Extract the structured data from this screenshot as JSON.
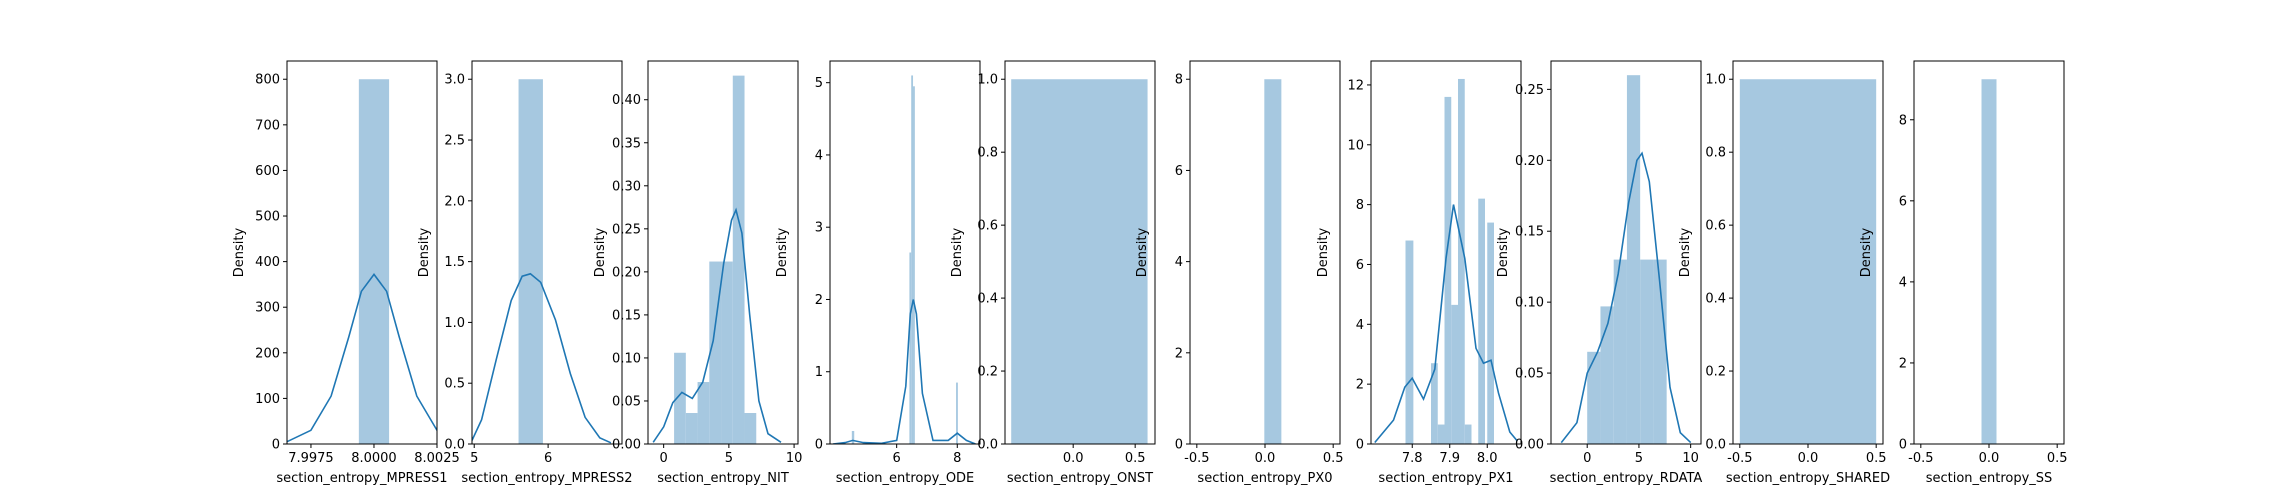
{
  "colors": {
    "hist": "#a6c8e0",
    "kde": "#1f77b4",
    "axis": "#000000"
  },
  "chart_data": [
    {
      "type": "histogram+kde",
      "xlabel": "section_entropy_MPRESS1",
      "ylabel": "Density",
      "xlim": [
        7.99655,
        8.0025
      ],
      "ylim": [
        0,
        840
      ],
      "xticks": [
        7.9975,
        8.0,
        8.0025
      ],
      "xtick_labels": [
        "7.9975",
        "8.0000",
        "8.0025"
      ],
      "yticks": [
        0,
        100,
        200,
        300,
        400,
        500,
        600,
        700,
        800
      ],
      "ytick_labels": [
        "0",
        "100",
        "200",
        "300",
        "400",
        "500",
        "600",
        "700",
        "800"
      ],
      "bars": [
        {
          "x0": 7.9994,
          "x1": 8.0006,
          "y": 800
        }
      ],
      "kde": [
        [
          7.99655,
          5
        ],
        [
          7.9975,
          30
        ],
        [
          7.9983,
          105
        ],
        [
          7.999,
          235
        ],
        [
          7.9995,
          335
        ],
        [
          8.0,
          372
        ],
        [
          8.0005,
          335
        ],
        [
          8.001,
          235
        ],
        [
          8.0017,
          105
        ],
        [
          8.0025,
          30
        ],
        [
          8.00345,
          5
        ]
      ]
    },
    {
      "type": "histogram+kde",
      "xlabel": "section_entropy_MPRESS2",
      "ylabel": "Density",
      "xlim": [
        4.97,
        7.0
      ],
      "ylim": [
        0,
        3.15
      ],
      "xticks": [
        5,
        6
      ],
      "xtick_labels": [
        "5",
        "6"
      ],
      "yticks": [
        0,
        0.5,
        1.0,
        1.5,
        2.0,
        2.5,
        3.0
      ],
      "ytick_labels": [
        "0.0",
        "0.5",
        "1.0",
        "1.5",
        "2.0",
        "2.5",
        "3.0"
      ],
      "bars": [
        {
          "x0": 5.6,
          "x1": 5.93,
          "y": 3.0
        }
      ],
      "kde": [
        [
          4.97,
          0.03
        ],
        [
          5.1,
          0.2
        ],
        [
          5.3,
          0.7
        ],
        [
          5.5,
          1.18
        ],
        [
          5.65,
          1.38
        ],
        [
          5.76,
          1.4
        ],
        [
          5.9,
          1.33
        ],
        [
          6.1,
          1.02
        ],
        [
          6.3,
          0.58
        ],
        [
          6.5,
          0.22
        ],
        [
          6.7,
          0.05
        ],
        [
          6.85,
          0.01
        ]
      ]
    },
    {
      "type": "histogram+kde",
      "xlabel": "section_entropy_NIT",
      "ylabel": "Density",
      "xlim": [
        -1.2,
        10.3
      ],
      "ylim": [
        0,
        0.445
      ],
      "xticks": [
        0,
        5,
        10
      ],
      "xtick_labels": [
        "0",
        "5",
        "10"
      ],
      "yticks": [
        0,
        0.05,
        0.1,
        0.15,
        0.2,
        0.25,
        0.3,
        0.35,
        0.4
      ],
      "ytick_labels": [
        "0.00",
        "0.05",
        "0.10",
        "0.15",
        "0.20",
        "0.25",
        "0.30",
        "0.35",
        "0.40"
      ],
      "bars": [
        {
          "x0": 0.8,
          "x1": 1.7,
          "y": 0.106
        },
        {
          "x0": 1.7,
          "x1": 2.6,
          "y": 0.036
        },
        {
          "x0": 2.6,
          "x1": 3.5,
          "y": 0.072
        },
        {
          "x0": 3.5,
          "x1": 4.4,
          "y": 0.212
        },
        {
          "x0": 4.4,
          "x1": 5.3,
          "y": 0.212
        },
        {
          "x0": 5.3,
          "x1": 6.2,
          "y": 0.428
        },
        {
          "x0": 6.2,
          "x1": 7.1,
          "y": 0.036
        }
      ],
      "kde": [
        [
          -0.8,
          0.002
        ],
        [
          0,
          0.02
        ],
        [
          0.7,
          0.048
        ],
        [
          1.4,
          0.06
        ],
        [
          2.2,
          0.053
        ],
        [
          3.0,
          0.072
        ],
        [
          3.8,
          0.12
        ],
        [
          4.6,
          0.21
        ],
        [
          5.2,
          0.26
        ],
        [
          5.55,
          0.272
        ],
        [
          6.0,
          0.245
        ],
        [
          6.6,
          0.15
        ],
        [
          7.3,
          0.05
        ],
        [
          8.0,
          0.012
        ],
        [
          9.0,
          0.002
        ]
      ]
    },
    {
      "type": "histogram+kde",
      "xlabel": "section_entropy_ODE",
      "ylabel": "Density",
      "xlim": [
        3.8,
        8.75
      ],
      "ylim": [
        0,
        5.3
      ],
      "xticks": [
        6,
        8
      ],
      "xtick_labels": [
        "6",
        "8"
      ],
      "yticks": [
        0,
        1,
        2,
        3,
        4,
        5
      ],
      "ytick_labels": [
        "0",
        "1",
        "2",
        "3",
        "4",
        "5"
      ],
      "bars": [
        {
          "x0": 4.52,
          "x1": 4.6,
          "y": 0.18
        },
        {
          "x0": 6.42,
          "x1": 6.48,
          "y": 2.65
        },
        {
          "x0": 6.48,
          "x1": 6.54,
          "y": 5.1
        },
        {
          "x0": 6.54,
          "x1": 6.6,
          "y": 4.95
        },
        {
          "x0": 7.96,
          "x1": 8.02,
          "y": 0.85
        }
      ],
      "kde": [
        [
          3.9,
          0
        ],
        [
          4.3,
          0.02
        ],
        [
          4.55,
          0.05
        ],
        [
          4.9,
          0.02
        ],
        [
          5.5,
          0.01
        ],
        [
          6.0,
          0.05
        ],
        [
          6.3,
          0.8
        ],
        [
          6.45,
          1.8
        ],
        [
          6.55,
          2.0
        ],
        [
          6.65,
          1.8
        ],
        [
          6.85,
          0.7
        ],
        [
          7.2,
          0.05
        ],
        [
          7.7,
          0.05
        ],
        [
          8.0,
          0.15
        ],
        [
          8.3,
          0.05
        ],
        [
          8.6,
          0
        ]
      ]
    },
    {
      "type": "histogram",
      "xlabel": "section_entropy_ONST",
      "ylabel": "Density",
      "xlim": [
        -0.55,
        0.66
      ],
      "ylim": [
        0,
        1.05
      ],
      "xticks": [
        0.0,
        0.5
      ],
      "xtick_labels": [
        "0.0",
        "0.5"
      ],
      "yticks": [
        0,
        0.2,
        0.4,
        0.6,
        0.8,
        1.0
      ],
      "ytick_labels": [
        "0.0",
        "0.2",
        "0.4",
        "0.6",
        "0.8",
        "1.0"
      ],
      "bars": [
        {
          "x0": -0.5,
          "x1": 0.6,
          "y": 1.0
        }
      ]
    },
    {
      "type": "histogram",
      "xlabel": "section_entropy_PX0",
      "ylabel": "Density",
      "xlim": [
        -0.55,
        0.55
      ],
      "ylim": [
        0,
        8.4
      ],
      "xticks": [
        -0.5,
        0.0,
        0.5
      ],
      "xtick_labels": [
        "-0.5",
        "0.0",
        "0.5"
      ],
      "yticks": [
        0,
        2,
        4,
        6,
        8
      ],
      "ytick_labels": [
        "0",
        "2",
        "4",
        "6",
        "8"
      ],
      "bars": [
        {
          "x0": -0.005,
          "x1": 0.12,
          "y": 8.0
        }
      ]
    },
    {
      "type": "histogram+kde",
      "xlabel": "section_entropy_PX1",
      "ylabel": "Density",
      "xlim": [
        7.69,
        8.09
      ],
      "ylim": [
        0,
        12.8
      ],
      "xticks": [
        7.8,
        7.9,
        8.0
      ],
      "xtick_labels": [
        "7.8",
        "7.9",
        "8.0"
      ],
      "yticks": [
        0,
        2,
        4,
        6,
        8,
        10,
        12
      ],
      "ytick_labels": [
        "0",
        "2",
        "4",
        "6",
        "8",
        "10",
        "12"
      ],
      "bars": [
        {
          "x0": 7.782,
          "x1": 7.803,
          "y": 6.8
        },
        {
          "x0": 7.85,
          "x1": 7.868,
          "y": 2.7
        },
        {
          "x0": 7.868,
          "x1": 7.886,
          "y": 0.65
        },
        {
          "x0": 7.886,
          "x1": 7.904,
          "y": 11.6
        },
        {
          "x0": 7.904,
          "x1": 7.922,
          "y": 4.65
        },
        {
          "x0": 7.922,
          "x1": 7.94,
          "y": 12.2
        },
        {
          "x0": 7.94,
          "x1": 7.958,
          "y": 0.65
        },
        {
          "x0": 7.976,
          "x1": 7.994,
          "y": 8.2
        },
        {
          "x0": 8.0,
          "x1": 8.018,
          "y": 7.4
        }
      ],
      "kde": [
        [
          7.7,
          0.05
        ],
        [
          7.75,
          0.8
        ],
        [
          7.78,
          1.9
        ],
        [
          7.8,
          2.2
        ],
        [
          7.83,
          1.5
        ],
        [
          7.86,
          2.5
        ],
        [
          7.89,
          6.2
        ],
        [
          7.91,
          8.0
        ],
        [
          7.94,
          6.2
        ],
        [
          7.97,
          3.2
        ],
        [
          7.99,
          2.7
        ],
        [
          8.01,
          2.8
        ],
        [
          8.03,
          1.7
        ],
        [
          8.06,
          0.4
        ],
        [
          8.08,
          0.1
        ]
      ]
    },
    {
      "type": "histogram+kde",
      "xlabel": "section_entropy_RDATA",
      "ylabel": "Density",
      "xlim": [
        -3.5,
        11
      ],
      "ylim": [
        0,
        0.27
      ],
      "xticks": [
        0,
        5,
        10
      ],
      "xtick_labels": [
        "0",
        "5",
        "10"
      ],
      "yticks": [
        0,
        0.05,
        0.1,
        0.15,
        0.2,
        0.25
      ],
      "ytick_labels": [
        "0.00",
        "0.05",
        "0.10",
        "0.15",
        "0.20",
        "0.25"
      ],
      "bars": [
        {
          "x0": 0.0,
          "x1": 1.28,
          "y": 0.065
        },
        {
          "x0": 1.28,
          "x1": 2.56,
          "y": 0.097
        },
        {
          "x0": 2.56,
          "x1": 3.84,
          "y": 0.13
        },
        {
          "x0": 3.84,
          "x1": 5.12,
          "y": 0.26
        },
        {
          "x0": 5.12,
          "x1": 6.4,
          "y": 0.13
        },
        {
          "x0": 6.4,
          "x1": 7.68,
          "y": 0.13
        }
      ],
      "kde": [
        [
          -2.5,
          0.001
        ],
        [
          -1.0,
          0.015
        ],
        [
          0.0,
          0.05
        ],
        [
          1.0,
          0.065
        ],
        [
          2.0,
          0.085
        ],
        [
          3.0,
          0.12
        ],
        [
          4.0,
          0.17
        ],
        [
          4.8,
          0.2
        ],
        [
          5.3,
          0.205
        ],
        [
          6.0,
          0.185
        ],
        [
          7.0,
          0.115
        ],
        [
          8.0,
          0.04
        ],
        [
          9.0,
          0.008
        ],
        [
          10.0,
          0.001
        ]
      ]
    },
    {
      "type": "histogram",
      "xlabel": "section_entropy_SHARED",
      "ylabel": "Density",
      "xlim": [
        -0.55,
        0.55
      ],
      "ylim": [
        0,
        1.05
      ],
      "xticks": [
        -0.5,
        0.0,
        0.5
      ],
      "xtick_labels": [
        "-0.5",
        "0.0",
        "0.5"
      ],
      "yticks": [
        0,
        0.2,
        0.4,
        0.6,
        0.8,
        1.0
      ],
      "ytick_labels": [
        "0.0",
        "0.2",
        "0.4",
        "0.6",
        "0.8",
        "1.0"
      ],
      "bars": [
        {
          "x0": -0.5,
          "x1": 0.5,
          "y": 1.0
        }
      ]
    },
    {
      "type": "histogram",
      "xlabel": "section_entropy_SS",
      "ylabel": "Density",
      "xlim": [
        -0.55,
        0.55
      ],
      "ylim": [
        0,
        9.45
      ],
      "xticks": [
        -0.5,
        0.0,
        0.5
      ],
      "xtick_labels": [
        "-0.5",
        "0.0",
        "0.5"
      ],
      "yticks": [
        0,
        2,
        4,
        6,
        8
      ],
      "ytick_labels": [
        "0",
        "2",
        "4",
        "6",
        "8"
      ],
      "bars": [
        {
          "x0": -0.055,
          "x1": 0.055,
          "y": 9.0
        }
      ]
    }
  ]
}
